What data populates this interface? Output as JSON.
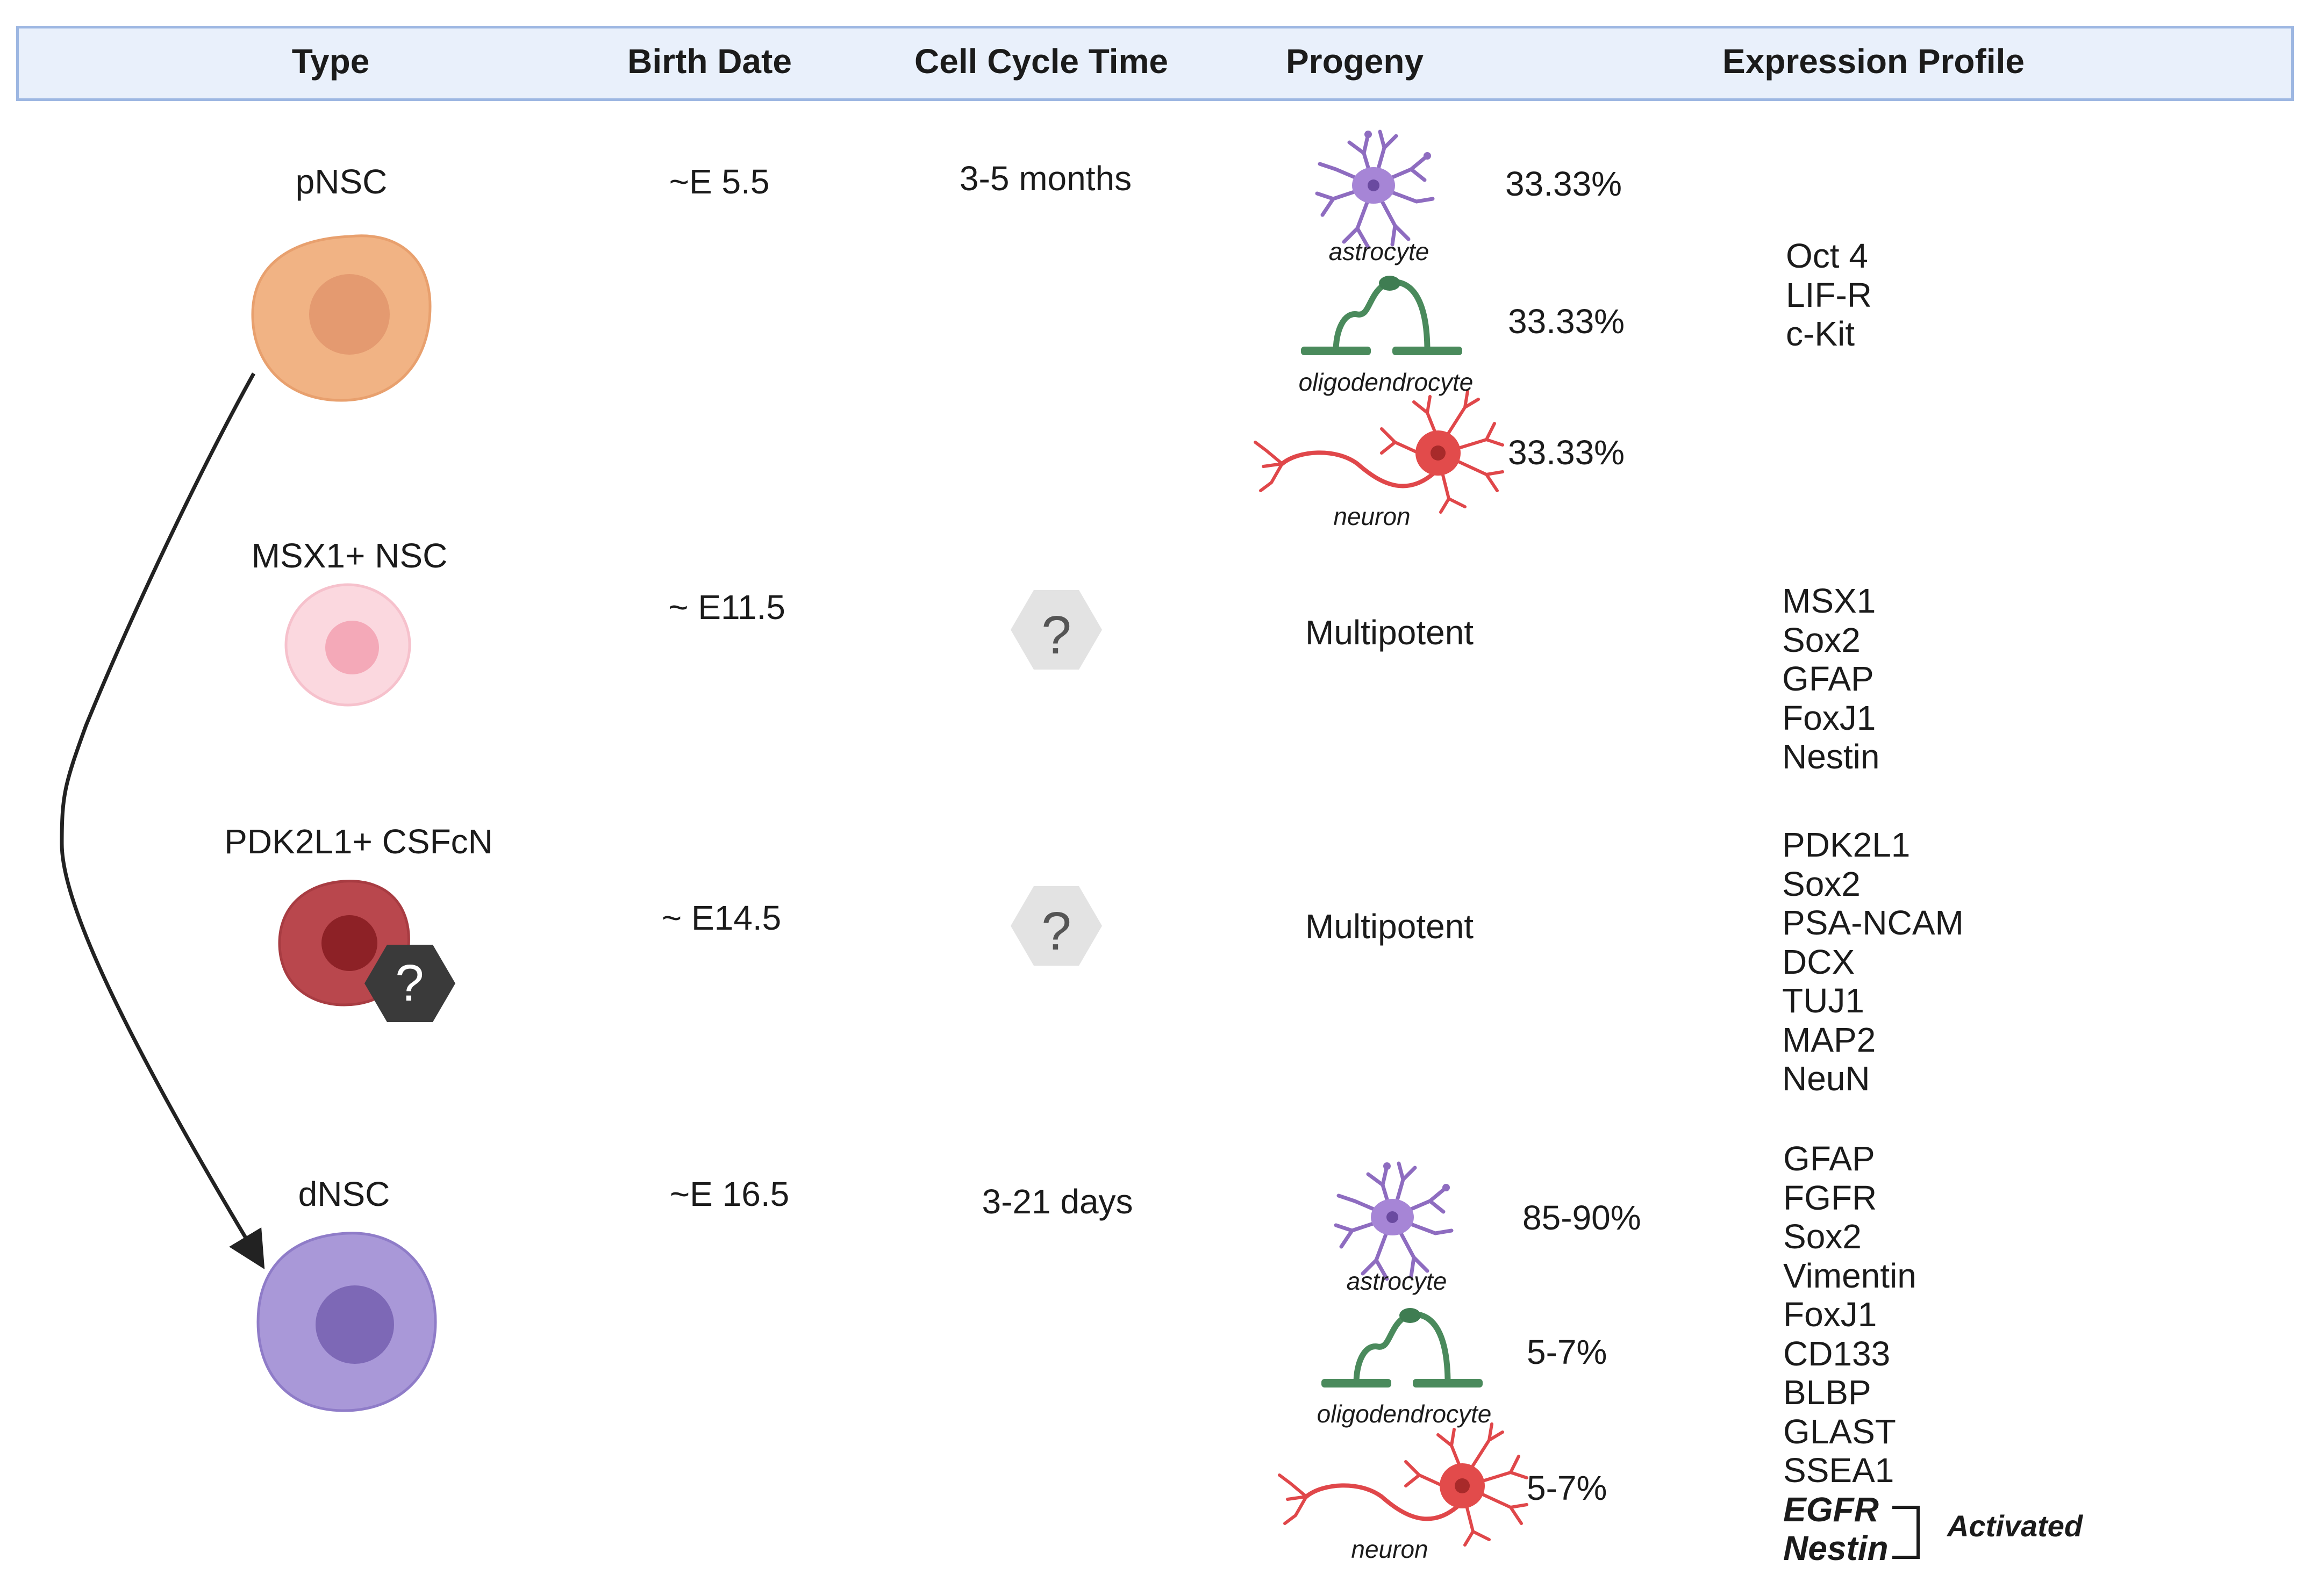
{
  "header": {
    "type": "Type",
    "birth_date": "Birth Date",
    "cell_cycle_time": "Cell Cycle Time",
    "progeny": "Progeny",
    "expression_profile": "Expression Profile"
  },
  "rows": [
    {
      "type": "pNSC",
      "birth_date": "~E 5.5",
      "cell_cycle_time": "3-5 months",
      "progeny": [
        {
          "label": "astrocyte",
          "percent": "33.33%"
        },
        {
          "label": "oligodendrocyte",
          "percent": "33.33%"
        },
        {
          "label": "neuron",
          "percent": "33.33%"
        }
      ],
      "expression": [
        "Oct 4",
        "LIF-R",
        "c-Kit"
      ]
    },
    {
      "type": "MSX1+ NSC",
      "birth_date": "~ E11.5",
      "cell_cycle_time": "?",
      "progeny_text": "Multipotent",
      "expression": [
        "MSX1",
        "Sox2",
        "GFAP",
        "FoxJ1",
        "Nestin"
      ]
    },
    {
      "type": "PDK2L1+ CSFcN",
      "birth_date": "~ E14.5",
      "cell_cycle_time": "?",
      "badge": "?",
      "progeny_text": "Multipotent",
      "expression": [
        "PDK2L1",
        "Sox2",
        "PSA-NCAM",
        "DCX",
        "TUJ1",
        "MAP2",
        "NeuN"
      ]
    },
    {
      "type": "dNSC",
      "birth_date": "~E 16.5",
      "cell_cycle_time": "3-21 days",
      "progeny": [
        {
          "label": "astrocyte",
          "percent": "85-90%"
        },
        {
          "label": "oligodendrocyte",
          "percent": "5-7%"
        },
        {
          "label": "neuron",
          "percent": "5-7%"
        }
      ],
      "expression": [
        "GFAP",
        "FGFR",
        "Sox2",
        "Vimentin",
        "FoxJ1",
        "CD133",
        "BLBP",
        "GLAST",
        "SSEA1"
      ],
      "expression_activated": [
        "EGFR",
        "Nestin"
      ],
      "activated_label": "Activated"
    }
  ],
  "colors": {
    "header_bg": "#e9f0fb",
    "header_border": "#9db7e2",
    "pnsc": "#f1b384",
    "msx1": "#fbd8df",
    "pdk2l1": "#b9474d",
    "dnsc": "#a998d8",
    "astrocyte": "#9a78c8",
    "oligodendrocyte": "#4a8a5c",
    "neuron": "#e0474a",
    "hexagon": "#e3e3e3",
    "badge": "#3a3a3a"
  }
}
